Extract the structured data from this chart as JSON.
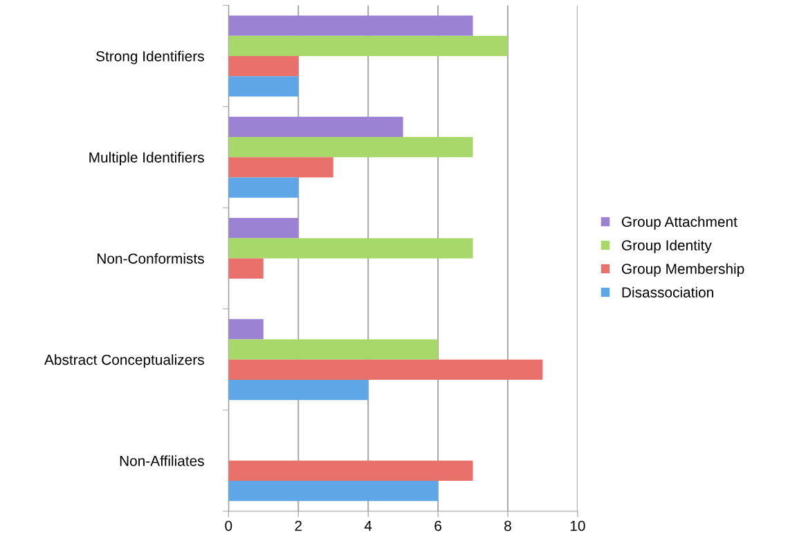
{
  "chart_data": {
    "type": "bar",
    "orientation": "horizontal",
    "categories": [
      "Strong Identifiers",
      "Multiple Identifiers",
      "Non-Conformists",
      "Abstract Conceptualizers",
      "Non-Affiliates"
    ],
    "series": [
      {
        "name": "Group Attachment",
        "color": "#9b82d2",
        "values": [
          7,
          5,
          2,
          1,
          0
        ]
      },
      {
        "name": "Group Identity",
        "color": "#a8d86a",
        "values": [
          8,
          7,
          7,
          6,
          0
        ]
      },
      {
        "name": "Group Membership",
        "color": "#e8716b",
        "values": [
          2,
          3,
          1,
          9,
          7
        ]
      },
      {
        "name": "Disassociation",
        "color": "#5ea6e6",
        "values": [
          2,
          2,
          0,
          4,
          6
        ]
      }
    ],
    "xlim": [
      0,
      10
    ],
    "xticks": [
      0,
      2,
      4,
      6,
      8,
      10
    ],
    "grid": "x",
    "legend": "right"
  }
}
